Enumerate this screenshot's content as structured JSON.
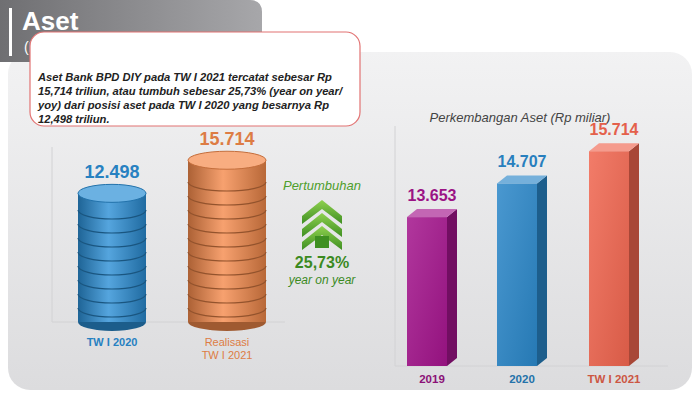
{
  "chart_data": [
    {
      "type": "bar",
      "title": "Aset",
      "subtitle": "(Rp Miliar)",
      "annotations": [
        "Aset Bank BPD DIY pada TW I 2021 tercatat sebesar Rp 15,714 triliun, atau  tumbuh sebesar 25,73% (year on year/ yoy) dari posisi aset pada TW I 2020 yang besarnya Rp 12,498 triliun.",
        "Pertumbuhan",
        "25,73%",
        "year on year"
      ],
      "categories": [
        "TW I 2020",
        "Realisasi TW I 2021"
      ],
      "values": [
        12498,
        15714
      ],
      "value_labels": [
        "12.498",
        "15.714"
      ],
      "colors": [
        "#2b8fd6",
        "#f58a4b"
      ],
      "ylim": [
        0,
        17000
      ],
      "data_labels": true,
      "tick_labels": false,
      "grid": false
    },
    {
      "type": "bar",
      "title": "Perkembangan Aset (Rp miliar)",
      "categories": [
        "2019",
        "2020",
        "TW I 2021"
      ],
      "values": [
        13653,
        14707,
        15714
      ],
      "value_labels": [
        "13.653",
        "14.707",
        "15.714"
      ],
      "colors": [
        "#a3148c",
        "#2a86c8",
        "#f0654f"
      ],
      "ylim": [
        9000,
        16500
      ],
      "data_labels": true,
      "tick_labels": false,
      "grid": false
    }
  ]
}
